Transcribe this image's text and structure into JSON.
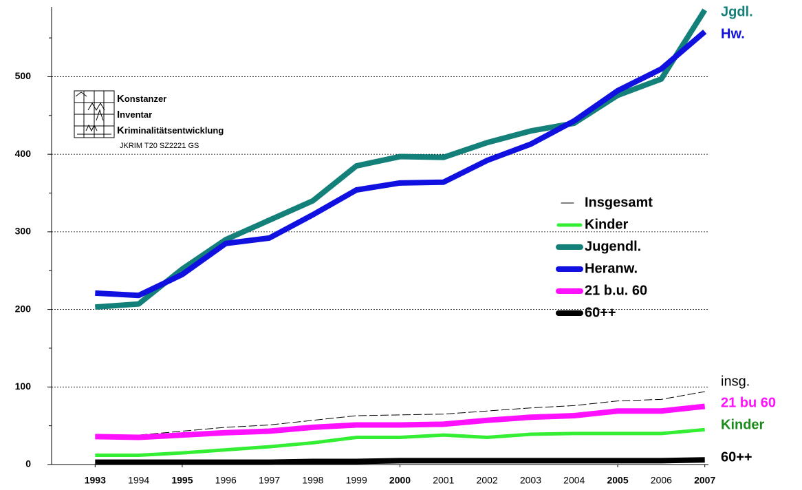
{
  "chart_data": {
    "type": "line",
    "x": [
      1993,
      1994,
      1995,
      1996,
      1997,
      1998,
      1999,
      2000,
      2001,
      2002,
      2003,
      2004,
      2005,
      2006,
      2007
    ],
    "bold_xticks": [
      1993,
      1995,
      2000,
      2005,
      2007
    ],
    "xlim": [
      1992,
      2008
    ],
    "ylim": [
      0,
      590
    ],
    "yticks": [
      0,
      100,
      200,
      300,
      400,
      500
    ],
    "minor_yticks": [
      50,
      150,
      250,
      350,
      450,
      550
    ],
    "grid": true,
    "legend": "right",
    "series": [
      {
        "name": "Insgesamt",
        "color": "#000000",
        "line_width": 1,
        "dash": true,
        "end_label": "insg.",
        "end_label_color": "#000000",
        "values": [
          37,
          38,
          43,
          48,
          51,
          57,
          63,
          64,
          65,
          69,
          73,
          76,
          82,
          84,
          94
        ]
      },
      {
        "name": "Kinder",
        "color": "#33ee33",
        "line_width": 5,
        "dash": false,
        "end_label": "Kinder",
        "end_label_color": "#1a8a1a",
        "values": [
          12,
          12,
          15,
          19,
          23,
          28,
          35,
          35,
          38,
          35,
          39,
          40,
          40,
          40,
          45
        ]
      },
      {
        "name": "Jugendl.",
        "color": "#138079",
        "line_width": 8,
        "dash": false,
        "end_label": "Jgdl.",
        "end_label_color": "#138079",
        "values": [
          203,
          207,
          252,
          290,
          315,
          340,
          385,
          397,
          396,
          415,
          430,
          440,
          476,
          497,
          586
        ]
      },
      {
        "name": "Heranw.",
        "color": "#1010e0",
        "line_width": 8,
        "dash": false,
        "end_label": "Hw.",
        "end_label_color": "#1010e0",
        "values": [
          221,
          218,
          245,
          285,
          292,
          322,
          354,
          363,
          364,
          392,
          413,
          443,
          482,
          510,
          558
        ]
      },
      {
        "name": "21 b.u. 60",
        "color": "#ff11ff",
        "line_width": 8,
        "dash": false,
        "end_label": "21 bu 60",
        "end_label_color": "#ff11ff",
        "values": [
          36,
          35,
          38,
          41,
          43,
          48,
          51,
          51,
          52,
          57,
          61,
          63,
          69,
          69,
          75
        ]
      },
      {
        "name": "60++",
        "color": "#000000",
        "line_width": 8,
        "dash": false,
        "end_label": "60++",
        "end_label_color": "#000000",
        "values": [
          3,
          3,
          3,
          3,
          3,
          4,
          4,
          5,
          5,
          5,
          5,
          5,
          5,
          5,
          6
        ]
      }
    ]
  },
  "logo": {
    "lines": [
      "Konstanzer",
      "Inventar",
      "Kriminalitätsentwicklung"
    ],
    "code": "JKRIM  T20 SZ2221 GS"
  }
}
